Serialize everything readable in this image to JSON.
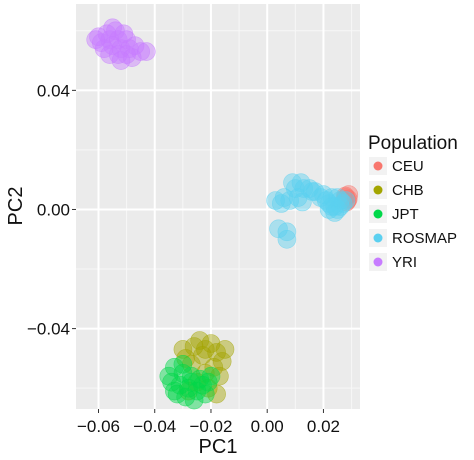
{
  "chart_data": {
    "type": "scatter",
    "title": "",
    "xlabel": "PC1",
    "ylabel": "PC2",
    "xlim": [
      -0.068,
      0.033
    ],
    "ylim": [
      -0.067,
      0.069
    ],
    "xticks": [
      -0.06,
      -0.04,
      -0.02,
      0.0,
      0.02
    ],
    "xtick_labels": [
      "−0.06",
      "−0.04",
      "−0.02",
      "0.00",
      "0.02"
    ],
    "yticks": [
      -0.04,
      0.0,
      0.04
    ],
    "ytick_labels": [
      "−0.04",
      "0.00",
      "0.04"
    ],
    "grid": true,
    "legend": {
      "title": "Population",
      "position": "right"
    },
    "series": [
      {
        "name": "CEU",
        "color": "#F8766D",
        "points": [
          [
            0.028,
            0.004
          ],
          [
            0.0285,
            0.003
          ],
          [
            0.029,
            0.005
          ],
          [
            0.0282,
            0.0025
          ],
          [
            0.0288,
            0.0035
          ],
          [
            0.0278,
            0.0045
          ]
        ]
      },
      {
        "name": "CHB",
        "color": "#A3A500",
        "points": [
          [
            -0.026,
            -0.046
          ],
          [
            -0.022,
            -0.047
          ],
          [
            -0.018,
            -0.048
          ],
          [
            -0.029,
            -0.05
          ],
          [
            -0.016,
            -0.051
          ],
          [
            -0.024,
            -0.044
          ],
          [
            -0.02,
            -0.045
          ],
          [
            -0.027,
            -0.052
          ],
          [
            -0.019,
            -0.053
          ],
          [
            -0.023,
            -0.049
          ],
          [
            -0.017,
            -0.056
          ],
          [
            -0.025,
            -0.058
          ],
          [
            -0.021,
            -0.06
          ],
          [
            -0.028,
            -0.061
          ],
          [
            -0.018,
            -0.062
          ],
          [
            -0.015,
            -0.047
          ],
          [
            -0.03,
            -0.047
          ],
          [
            -0.022,
            -0.055
          ]
        ]
      },
      {
        "name": "JPT",
        "color": "#00D84A",
        "points": [
          [
            -0.033,
            -0.053
          ],
          [
            -0.03,
            -0.055
          ],
          [
            -0.027,
            -0.056
          ],
          [
            -0.024,
            -0.057
          ],
          [
            -0.021,
            -0.058
          ],
          [
            -0.034,
            -0.058
          ],
          [
            -0.031,
            -0.059
          ],
          [
            -0.028,
            -0.06
          ],
          [
            -0.025,
            -0.061
          ],
          [
            -0.022,
            -0.062
          ],
          [
            -0.032,
            -0.062
          ],
          [
            -0.029,
            -0.063
          ],
          [
            -0.026,
            -0.064
          ],
          [
            -0.023,
            -0.059
          ],
          [
            -0.035,
            -0.056
          ],
          [
            -0.03,
            -0.052
          ],
          [
            -0.027,
            -0.058
          ],
          [
            -0.033,
            -0.061
          ],
          [
            -0.02,
            -0.056
          ]
        ]
      },
      {
        "name": "ROSMAP",
        "color": "#5BD0F0",
        "points": [
          [
            0.022,
            0.002
          ],
          [
            0.024,
            0.001
          ],
          [
            0.026,
            0.003
          ],
          [
            0.023,
            0.004
          ],
          [
            0.025,
            0.0
          ],
          [
            0.027,
            0.002
          ],
          [
            0.021,
            0.003
          ],
          [
            0.024,
            -0.001
          ],
          [
            0.026,
            0.001
          ],
          [
            0.028,
            0.003
          ],
          [
            0.022,
            0.0
          ],
          [
            0.025,
            0.004
          ],
          [
            0.023,
            0.001
          ],
          [
            0.02,
            0.005
          ],
          [
            0.019,
            0.004
          ],
          [
            0.016,
            0.006
          ],
          [
            0.013,
            0.007
          ],
          [
            0.01,
            0.007
          ],
          [
            0.009,
            0.009
          ],
          [
            0.012,
            0.009
          ],
          [
            0.015,
            0.007
          ],
          [
            0.017,
            0.006
          ],
          [
            0.008,
            0.003
          ],
          [
            0.005,
            0.002
          ],
          [
            0.006,
            0.004
          ],
          [
            0.011,
            0.004
          ],
          [
            0.0125,
            0.0025
          ],
          [
            0.003,
            0.003
          ],
          [
            0.004,
            -0.0065
          ],
          [
            0.007,
            -0.0075
          ],
          [
            0.007,
            -0.01
          ]
        ]
      },
      {
        "name": "YRI",
        "color": "#C77CFF",
        "points": [
          [
            -0.06,
            0.058
          ],
          [
            -0.057,
            0.059
          ],
          [
            -0.054,
            0.06
          ],
          [
            -0.051,
            0.059
          ],
          [
            -0.059,
            0.056
          ],
          [
            -0.056,
            0.057
          ],
          [
            -0.053,
            0.057
          ],
          [
            -0.05,
            0.057
          ],
          [
            -0.058,
            0.054
          ],
          [
            -0.055,
            0.055
          ],
          [
            -0.052,
            0.054
          ],
          [
            -0.049,
            0.054
          ],
          [
            -0.047,
            0.055
          ],
          [
            -0.056,
            0.052
          ],
          [
            -0.053,
            0.052
          ],
          [
            -0.05,
            0.052
          ],
          [
            -0.045,
            0.053
          ],
          [
            -0.043,
            0.053
          ],
          [
            -0.048,
            0.051
          ],
          [
            -0.052,
            0.05
          ],
          [
            -0.055,
            0.061
          ],
          [
            -0.061,
            0.057
          ]
        ]
      }
    ]
  }
}
